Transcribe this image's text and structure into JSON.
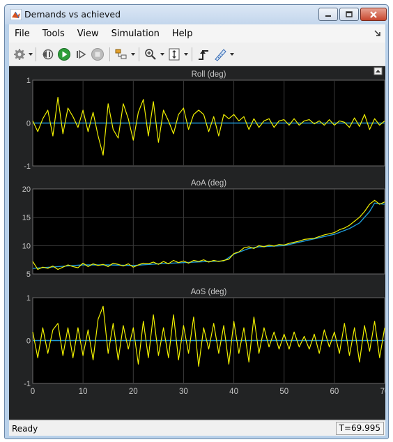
{
  "window": {
    "title": "Demands vs achieved"
  },
  "menu": {
    "items": [
      "File",
      "Tools",
      "View",
      "Simulation",
      "Help"
    ]
  },
  "toolbar": {
    "buttons": [
      {
        "name": "settings-icon"
      },
      {
        "name": "step-back-icon"
      },
      {
        "name": "run-icon"
      },
      {
        "name": "step-forward-icon"
      },
      {
        "name": "stop-icon"
      },
      {
        "name": "highlight-block-icon"
      },
      {
        "name": "zoom-icon"
      },
      {
        "name": "scale-axes-icon"
      },
      {
        "name": "triggers-icon"
      },
      {
        "name": "measurements-icon"
      }
    ]
  },
  "status": {
    "ready": "Ready",
    "time": "T=69.995"
  },
  "colors": {
    "demand": "#1f9ad6",
    "achieved": "#f0f000",
    "background": "#000000",
    "grid": "#3a3a3a"
  },
  "chart_data": [
    {
      "type": "line",
      "title": "Roll (deg)",
      "xlim": [
        0,
        70
      ],
      "ylim": [
        -1,
        1
      ],
      "yticks": [
        "1",
        "0",
        "-1"
      ],
      "series": [
        {
          "values_desc": "demand",
          "x": [
            0,
            70
          ],
          "y": [
            0,
            0
          ]
        },
        {
          "x": [
            0,
            1,
            2,
            3,
            4,
            5,
            6,
            7,
            8,
            9,
            10,
            11,
            12,
            13,
            14,
            15,
            16,
            17,
            18,
            19,
            20,
            21,
            22,
            23,
            24,
            25,
            26,
            27,
            28,
            29,
            30,
            31,
            32,
            33,
            34,
            35,
            36,
            37,
            38,
            39,
            40,
            41,
            42,
            43,
            44,
            45,
            46,
            47,
            48,
            49,
            50,
            51,
            52,
            53,
            54,
            55,
            56,
            57,
            58,
            59,
            60,
            61,
            62,
            63,
            64,
            65,
            66,
            67,
            68,
            69,
            70
          ],
          "y": [
            0.05,
            -0.2,
            0.1,
            0.3,
            -0.3,
            0.6,
            -0.25,
            0.35,
            0.15,
            -0.1,
            0.3,
            -0.2,
            0.25,
            -0.3,
            -0.75,
            0.45,
            -0.15,
            -0.35,
            0.45,
            0.1,
            -0.4,
            0.25,
            0.55,
            -0.3,
            0.5,
            -0.45,
            0.3,
            0.05,
            -0.25,
            0.2,
            0.35,
            -0.15,
            0.2,
            0.3,
            0.2,
            -0.2,
            0.15,
            -0.3,
            0.2,
            0.1,
            0.2,
            0.05,
            0.15,
            -0.15,
            0.1,
            -0.1,
            0.05,
            0.1,
            -0.1,
            0.05,
            0.08,
            -0.05,
            0.1,
            -0.05,
            0.05,
            0.08,
            -0.02,
            0.05,
            -0.05,
            0.08,
            -0.05,
            0.05,
            0.02,
            -0.1,
            0.12,
            -0.08,
            0.2,
            -0.15,
            0.1,
            -0.05,
            0.05
          ]
        }
      ]
    },
    {
      "type": "line",
      "title": "AoA (deg)",
      "xlim": [
        0,
        70
      ],
      "ylim": [
        5,
        20
      ],
      "yticks": [
        "20",
        "15",
        "10",
        "5"
      ],
      "series": [
        {
          "x": [
            0,
            5,
            10,
            15,
            20,
            25,
            30,
            35,
            38,
            40,
            43,
            45,
            50,
            55,
            60,
            63,
            65,
            67,
            68,
            70
          ],
          "y": [
            6,
            6.3,
            6.6,
            6.6,
            6.5,
            6.8,
            7,
            7.2,
            7.3,
            8.5,
            9.5,
            9.8,
            10,
            11,
            12,
            13,
            14,
            16,
            17.5,
            17.3
          ]
        },
        {
          "x": [
            0,
            1,
            2,
            3,
            4,
            5,
            6,
            7,
            8,
            9,
            10,
            11,
            12,
            13,
            14,
            15,
            16,
            17,
            18,
            19,
            20,
            21,
            22,
            23,
            24,
            25,
            26,
            27,
            28,
            29,
            30,
            31,
            32,
            33,
            34,
            35,
            36,
            37,
            38,
            39,
            40,
            41,
            42,
            43,
            44,
            45,
            46,
            47,
            48,
            49,
            50,
            51,
            52,
            53,
            54,
            55,
            56,
            57,
            58,
            59,
            60,
            61,
            62,
            63,
            64,
            65,
            66,
            67,
            68,
            69,
            70
          ],
          "y": [
            7.2,
            5.8,
            6.2,
            6,
            6.4,
            5.8,
            6.2,
            6.6,
            6.3,
            6.1,
            6.9,
            6.3,
            6.8,
            6.5,
            6.7,
            6.3,
            6.9,
            6.7,
            6.4,
            6.8,
            6.2,
            6.6,
            6.9,
            6.8,
            7.1,
            6.7,
            7.2,
            6.8,
            7.4,
            7,
            7.3,
            6.9,
            7.4,
            7.2,
            7.5,
            7.1,
            7.4,
            7.2,
            7.4,
            7.6,
            8.6,
            8.9,
            9.6,
            9.8,
            9.5,
            10,
            9.8,
            10.1,
            9.9,
            10.2,
            10.1,
            10.4,
            10.6,
            10.8,
            11.1,
            11.2,
            11.3,
            11.6,
            11.9,
            12.1,
            12.3,
            12.8,
            13.1,
            13.6,
            14.3,
            15,
            16,
            17.3,
            18,
            17.3,
            17.7
          ]
        }
      ]
    },
    {
      "type": "line",
      "title": "AoS (deg)",
      "xlim": [
        0,
        70
      ],
      "ylim": [
        -1,
        1
      ],
      "yticks": [
        "1",
        "0",
        "-1"
      ],
      "xticks": [
        "0",
        "10",
        "20",
        "30",
        "40",
        "50",
        "60",
        "70"
      ],
      "series": [
        {
          "x": [
            0,
            70
          ],
          "y": [
            0,
            0
          ]
        },
        {
          "x": [
            0,
            1,
            2,
            3,
            4,
            5,
            6,
            7,
            8,
            9,
            10,
            11,
            12,
            13,
            14,
            15,
            16,
            17,
            18,
            19,
            20,
            21,
            22,
            23,
            24,
            25,
            26,
            27,
            28,
            29,
            30,
            31,
            32,
            33,
            34,
            35,
            36,
            37,
            38,
            39,
            40,
            41,
            42,
            43,
            44,
            45,
            46,
            47,
            48,
            49,
            50,
            51,
            52,
            53,
            54,
            55,
            56,
            57,
            58,
            59,
            60,
            61,
            62,
            63,
            64,
            65,
            66,
            67,
            68,
            69,
            70
          ],
          "y": [
            0.2,
            -0.4,
            0.3,
            -0.3,
            0.25,
            0.4,
            -0.35,
            0.3,
            -0.4,
            0.3,
            -0.35,
            0.25,
            -0.45,
            0.5,
            0.8,
            -0.3,
            0.4,
            -0.45,
            0.35,
            -0.2,
            0.3,
            -0.55,
            0.45,
            -0.4,
            0.6,
            -0.35,
            0.3,
            -0.4,
            0.6,
            -0.45,
            0.35,
            -0.3,
            0.55,
            -0.6,
            0.3,
            -0.2,
            0.4,
            -0.3,
            0.35,
            -0.55,
            0.45,
            -0.3,
            0.3,
            -0.5,
            0.55,
            -0.3,
            0.3,
            -0.15,
            0.2,
            -0.2,
            0.15,
            -0.2,
            0.2,
            -0.15,
            0.1,
            -0.2,
            0.15,
            -0.3,
            0.25,
            -0.15,
            0.2,
            -0.3,
            0.4,
            -0.35,
            0.3,
            -0.5,
            0.35,
            -0.25,
            0.45,
            -0.4,
            0.3
          ]
        }
      ]
    }
  ]
}
